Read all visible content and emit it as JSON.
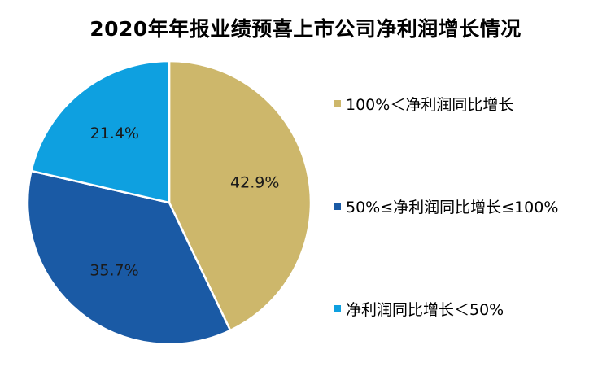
{
  "chart_data": {
    "type": "pie",
    "title": "2020年年报业绩预喜上市公司净利润增长情况",
    "categories": [
      "100%＜净利润同比增长",
      "50%≤净利润同比增长≤100%",
      "净利润同比增长＜50%"
    ],
    "values": [
      42.9,
      35.7,
      21.4
    ],
    "data_labels": [
      "42.9%",
      "35.7%",
      "21.4%"
    ],
    "colors": [
      "#CDB76B",
      "#1A5AA5",
      "#0EA0E0"
    ],
    "start_angle_deg": 0,
    "direction": "clockwise",
    "legend_position": "right"
  }
}
